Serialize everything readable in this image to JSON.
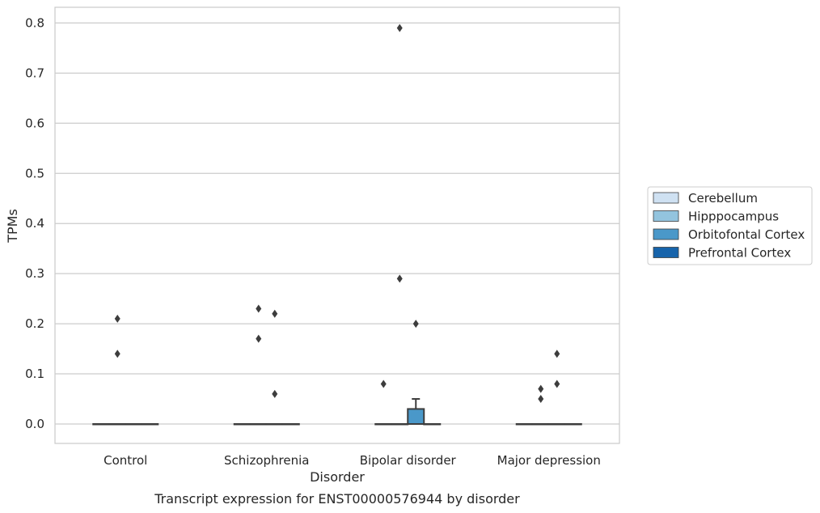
{
  "chart_data": {
    "type": "box",
    "caption": "Transcript expression for ENST00000576944 by disorder",
    "xlabel": "Disorder",
    "ylabel": "TPMs",
    "ylim": [
      -0.04,
      0.83
    ],
    "yticks": [
      "0.0",
      "0.1",
      "0.2",
      "0.3",
      "0.4",
      "0.5",
      "0.6",
      "0.7",
      "0.8"
    ],
    "grid": "horizontal",
    "legend_position": "right",
    "categories": [
      "Control",
      "Schizophrenia",
      "Bipolar disorder",
      "Major depression"
    ],
    "series": [
      {
        "name": "Cerebellum",
        "color": "#cfe1f2"
      },
      {
        "name": "Hipppocampus",
        "color": "#93c4de"
      },
      {
        "name": "Orbitofontal Cortex",
        "color": "#4a98c9"
      },
      {
        "name": "Prefrontal Cortex",
        "color": "#1764ab"
      }
    ],
    "boxes": [
      {
        "category": 0,
        "series": 0,
        "q1": 0,
        "median": 0,
        "q3": 0,
        "whisker_low": 0,
        "whisker_high": 0,
        "outliers": []
      },
      {
        "category": 0,
        "series": 1,
        "q1": 0,
        "median": 0,
        "q3": 0,
        "whisker_low": 0,
        "whisker_high": 0,
        "outliers": [
          0.14,
          0.21
        ]
      },
      {
        "category": 0,
        "series": 2,
        "q1": 0,
        "median": 0,
        "q3": 0,
        "whisker_low": 0,
        "whisker_high": 0,
        "outliers": []
      },
      {
        "category": 0,
        "series": 3,
        "q1": 0,
        "median": 0,
        "q3": 0,
        "whisker_low": 0,
        "whisker_high": 0,
        "outliers": []
      },
      {
        "category": 1,
        "series": 0,
        "q1": 0,
        "median": 0,
        "q3": 0,
        "whisker_low": 0,
        "whisker_high": 0,
        "outliers": []
      },
      {
        "category": 1,
        "series": 1,
        "q1": 0,
        "median": 0,
        "q3": 0,
        "whisker_low": 0,
        "whisker_high": 0,
        "outliers": [
          0.17,
          0.23
        ]
      },
      {
        "category": 1,
        "series": 2,
        "q1": 0,
        "median": 0,
        "q3": 0,
        "whisker_low": 0,
        "whisker_high": 0,
        "outliers": [
          0.06,
          0.22
        ]
      },
      {
        "category": 1,
        "series": 3,
        "q1": 0,
        "median": 0,
        "q3": 0,
        "whisker_low": 0,
        "whisker_high": 0,
        "outliers": []
      },
      {
        "category": 2,
        "series": 0,
        "q1": 0,
        "median": 0,
        "q3": 0,
        "whisker_low": 0,
        "whisker_high": 0,
        "outliers": [
          0.08
        ]
      },
      {
        "category": 2,
        "series": 1,
        "q1": 0,
        "median": 0,
        "q3": 0,
        "whisker_low": 0,
        "whisker_high": 0,
        "outliers": [
          0.29,
          0.79
        ]
      },
      {
        "category": 2,
        "series": 2,
        "q1": 0,
        "median": 0,
        "q3": 0.03,
        "whisker_low": 0,
        "whisker_high": 0.05,
        "outliers": [
          0.2
        ]
      },
      {
        "category": 2,
        "series": 3,
        "q1": 0,
        "median": 0,
        "q3": 0,
        "whisker_low": 0,
        "whisker_high": 0,
        "outliers": []
      },
      {
        "category": 3,
        "series": 0,
        "q1": 0,
        "median": 0,
        "q3": 0,
        "whisker_low": 0,
        "whisker_high": 0,
        "outliers": []
      },
      {
        "category": 3,
        "series": 1,
        "q1": 0,
        "median": 0,
        "q3": 0,
        "whisker_low": 0,
        "whisker_high": 0,
        "outliers": [
          0.05,
          0.07
        ]
      },
      {
        "category": 3,
        "series": 2,
        "q1": 0,
        "median": 0,
        "q3": 0,
        "whisker_low": 0,
        "whisker_high": 0,
        "outliers": [
          0.08,
          0.14
        ]
      },
      {
        "category": 3,
        "series": 3,
        "q1": 0,
        "median": 0,
        "q3": 0,
        "whisker_low": 0,
        "whisker_high": 0,
        "outliers": []
      }
    ]
  }
}
